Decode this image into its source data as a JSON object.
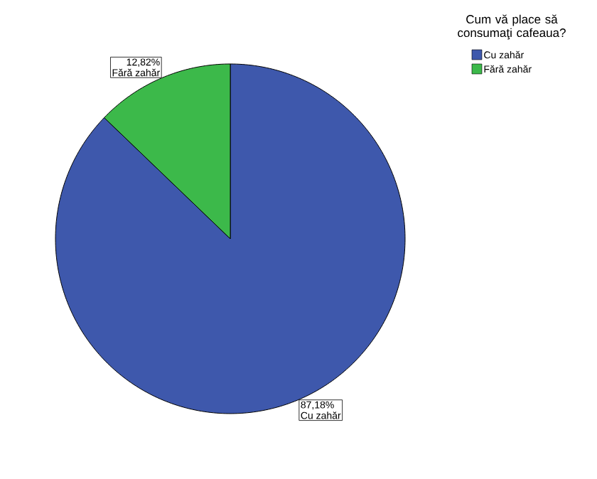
{
  "chart_data": {
    "type": "pie",
    "legend_title": "Cum vă place să consumaţi cafeaua?",
    "categories": [
      "Cu zahăr",
      "Fără zahăr"
    ],
    "values": [
      87.18,
      12.82
    ],
    "value_labels": [
      "87,18%",
      "12,82%"
    ],
    "colors": [
      "#3e58ac",
      "#3cb94a"
    ],
    "legend": "top right"
  }
}
